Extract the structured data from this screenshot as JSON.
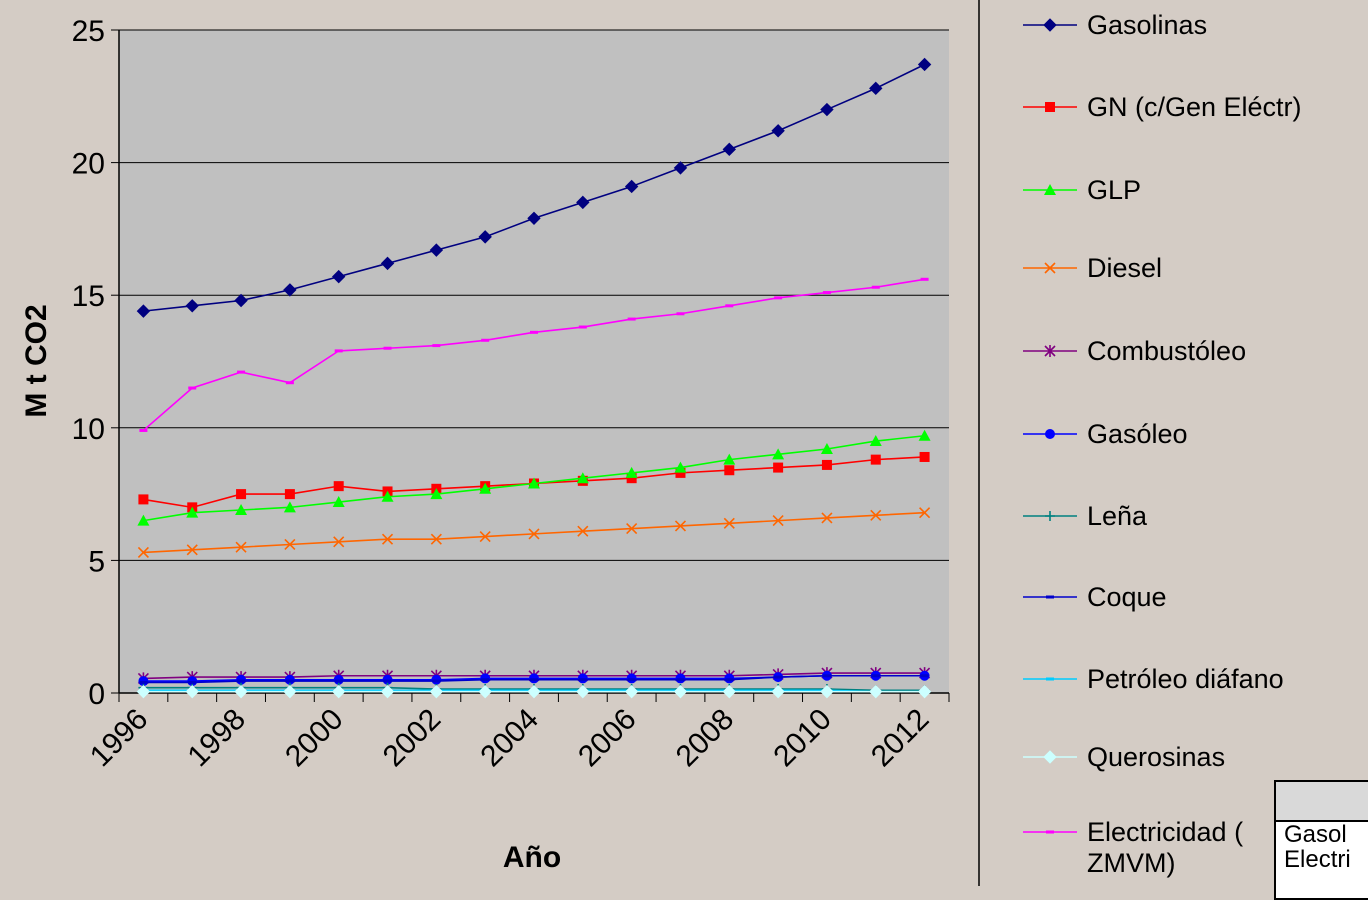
{
  "chart_data": {
    "type": "line",
    "title": "",
    "xlabel": "Año",
    "ylabel": "M t CO2",
    "ylim": [
      0,
      25
    ],
    "yticks": [
      "0",
      "5",
      "10",
      "15",
      "20",
      "25"
    ],
    "xticks": [
      "1996",
      "1998",
      "2000",
      "2002",
      "2004",
      "2006",
      "2008",
      "2010",
      "2012"
    ],
    "grid": "horizontal",
    "legend_position": "right",
    "x": [
      1996,
      1997,
      1998,
      1999,
      2000,
      2001,
      2002,
      2003,
      2004,
      2005,
      2006,
      2007,
      2008,
      2009,
      2010,
      2011,
      2012
    ],
    "series": [
      {
        "name": "Gasolinas",
        "color": "#000080",
        "marker": "diamond",
        "values": [
          14.4,
          14.6,
          14.8,
          15.2,
          15.7,
          16.2,
          16.7,
          17.2,
          17.9,
          18.5,
          19.1,
          19.8,
          20.5,
          21.2,
          22.0,
          22.8,
          23.7
        ]
      },
      {
        "name": "GN  (c/Gen Eléctr)",
        "color": "#ff0000",
        "marker": "square",
        "values": [
          7.3,
          7.0,
          7.5,
          7.5,
          7.8,
          7.6,
          7.7,
          7.8,
          7.9,
          8.0,
          8.1,
          8.3,
          8.4,
          8.5,
          8.6,
          8.8,
          8.9
        ]
      },
      {
        "name": "GLP",
        "color": "#00ff00",
        "marker": "triangle",
        "values": [
          6.5,
          6.8,
          6.9,
          7.0,
          7.2,
          7.4,
          7.5,
          7.7,
          7.9,
          8.1,
          8.3,
          8.5,
          8.8,
          9.0,
          9.2,
          9.5,
          9.7
        ]
      },
      {
        "name": "Diesel",
        "color": "#ff6600",
        "marker": "x",
        "values": [
          5.3,
          5.4,
          5.5,
          5.6,
          5.7,
          5.8,
          5.8,
          5.9,
          6.0,
          6.1,
          6.2,
          6.3,
          6.4,
          6.5,
          6.6,
          6.7,
          6.8
        ]
      },
      {
        "name": "Combustóleo",
        "color": "#800080",
        "marker": "star",
        "values": [
          0.55,
          0.6,
          0.6,
          0.6,
          0.65,
          0.65,
          0.65,
          0.65,
          0.65,
          0.65,
          0.65,
          0.65,
          0.65,
          0.7,
          0.75,
          0.75,
          0.75
        ]
      },
      {
        "name": "Gasóleo",
        "color": "#0000ff",
        "marker": "circle",
        "values": [
          0.45,
          0.45,
          0.5,
          0.5,
          0.5,
          0.5,
          0.5,
          0.55,
          0.55,
          0.55,
          0.55,
          0.55,
          0.55,
          0.6,
          0.65,
          0.65,
          0.65
        ]
      },
      {
        "name": "Leña",
        "color": "#008080",
        "marker": "plus",
        "values": [
          0.2,
          0.2,
          0.2,
          0.2,
          0.2,
          0.2,
          0.15,
          0.15,
          0.15,
          0.15,
          0.15,
          0.15,
          0.15,
          0.15,
          0.15,
          0.1,
          0.1
        ]
      },
      {
        "name": "Coque",
        "color": "#0000cc",
        "marker": "dash",
        "values": [
          0.4,
          0.4,
          0.45,
          0.45,
          0.45,
          0.45,
          0.45,
          0.5,
          0.5,
          0.5,
          0.5,
          0.5,
          0.5,
          0.6,
          0.65,
          0.65,
          0.65
        ]
      },
      {
        "name": "Petróleo diáfano",
        "color": "#00ccff",
        "marker": "dash",
        "values": [
          0.1,
          0.1,
          0.1,
          0.1,
          0.1,
          0.1,
          0.1,
          0.1,
          0.1,
          0.1,
          0.1,
          0.1,
          0.1,
          0.1,
          0.1,
          0.05,
          0.05
        ]
      },
      {
        "name": "Querosinas",
        "color": "#ccffff",
        "marker": "diamond",
        "values": [
          0.05,
          0.05,
          0.05,
          0.05,
          0.05,
          0.05,
          0.05,
          0.05,
          0.05,
          0.05,
          0.05,
          0.05,
          0.05,
          0.05,
          0.05,
          0.05,
          0.05
        ]
      },
      {
        "name": "Electricidad (ZMVM)",
        "color": "#ff00ff",
        "marker": "dash",
        "legend_lines": [
          "Electricidad (",
          "ZMVM)"
        ],
        "values": [
          9.9,
          11.5,
          12.1,
          11.7,
          12.9,
          13.0,
          13.1,
          13.3,
          13.6,
          13.8,
          14.1,
          14.3,
          14.6,
          14.9,
          15.1,
          15.3,
          15.6
        ]
      }
    ]
  },
  "overlay_table": {
    "cells": [
      "Gasol",
      "Electri"
    ]
  }
}
